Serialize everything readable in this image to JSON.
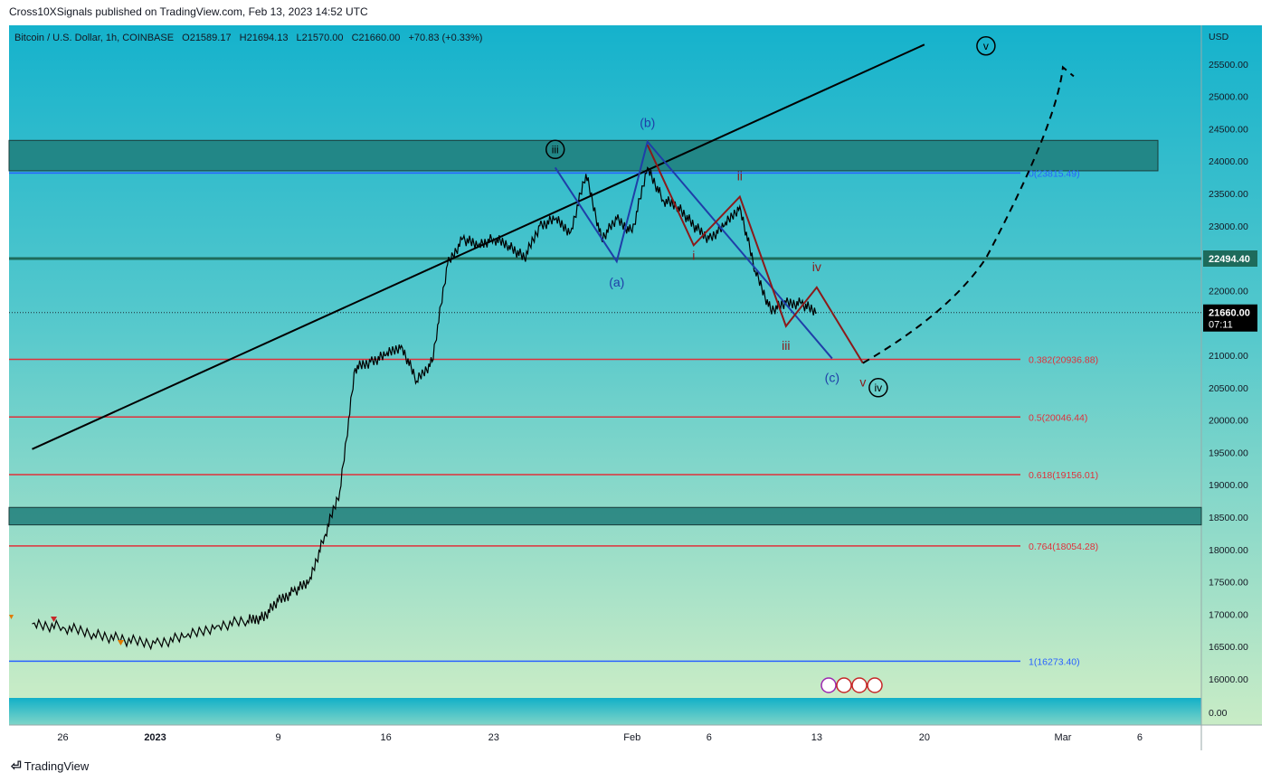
{
  "header": {
    "published": "Cross10XSignals published on TradingView.com, Feb 13, 2023 14:52 UTC"
  },
  "symbol_line": {
    "name": "Bitcoin / U.S. Dollar, 1h, COINBASE",
    "open": "O21589.17",
    "high": "H21694.13",
    "low": "L21570.00",
    "close": "C21660.00",
    "change": "+70.83 (+0.33%)"
  },
  "footer": {
    "brand": "TradingView"
  },
  "colors": {
    "bg_top": "#1ab6cf",
    "bg_bottom": "#c5e9c6",
    "zone": "#207e7a",
    "green_line": "#1e6b5b",
    "fib_red": "#e0303a",
    "fib_blue": "#2962ff",
    "wave_blue": "#1f3ea8",
    "wave_red": "#8b1a1a",
    "price": "#000000"
  },
  "chart_data": {
    "type": "line",
    "title": "Bitcoin / U.S. Dollar, 1h, COINBASE",
    "currency": "USD",
    "y_ticks": [
      16000,
      16500,
      17000,
      17500,
      18000,
      18500,
      19000,
      19500,
      20000,
      20500,
      21000,
      21500,
      22000,
      22500,
      23000,
      23500,
      24000,
      24500,
      25000,
      25500
    ],
    "y_tick_labels": [
      "16000.00",
      "16500.00",
      "17000.00",
      "17500.00",
      "18000.00",
      "18500.00",
      "19000.00",
      "19500.00",
      "20000.00",
      "20500.00",
      "21000.00",
      "21500.00",
      "22000.00",
      "22500.00",
      "23000.00",
      "23500.00",
      "24000.00",
      "24500.00",
      "25000.00",
      "25500.00"
    ],
    "volume_tick_label": "0.00",
    "x_ticks": [
      {
        "date": "2022-12-26",
        "label": "26"
      },
      {
        "date": "2023-01-01",
        "label": "2023"
      },
      {
        "date": "2023-01-09",
        "label": "9"
      },
      {
        "date": "2023-01-16",
        "label": "16"
      },
      {
        "date": "2023-01-23",
        "label": "23"
      },
      {
        "date": "2023-02-01",
        "label": "Feb"
      },
      {
        "date": "2023-02-06",
        "label": "6"
      },
      {
        "date": "2023-02-13",
        "label": "13"
      },
      {
        "date": "2023-02-20",
        "label": "20"
      },
      {
        "date": "2023-03-01",
        "label": "Mar"
      },
      {
        "date": "2023-03-06",
        "label": "6"
      }
    ],
    "series": [
      {
        "x": [
          "2022-12-24",
          "2022-12-26",
          "2022-12-28",
          "2022-12-30",
          "2023-01-01",
          "2023-01-03",
          "2023-01-05",
          "2023-01-07",
          "2023-01-08",
          "2023-01-09",
          "2023-01-10",
          "2023-01-11",
          "2023-01-12",
          "2023-01-13",
          "2023-01-14",
          "2023-01-15",
          "2023-01-16",
          "2023-01-17",
          "2023-01-18",
          "2023-01-19",
          "2023-01-20",
          "2023-01-21",
          "2023-01-22",
          "2023-01-23",
          "2023-01-24",
          "2023-01-25",
          "2023-01-26",
          "2023-01-27",
          "2023-01-28",
          "2023-01-29",
          "2023-01-30",
          "2023-01-31",
          "2023-02-01",
          "2023-02-02",
          "2023-02-03",
          "2023-02-04",
          "2023-02-05",
          "2023-02-06",
          "2023-02-07",
          "2023-02-08",
          "2023-02-09",
          "2023-02-10",
          "2023-02-11",
          "2023-02-12",
          "2023-02-13"
        ],
        "y": [
          16850,
          16800,
          16700,
          16600,
          16550,
          16650,
          16820,
          16900,
          16950,
          17200,
          17350,
          17500,
          18200,
          18900,
          20800,
          20900,
          21000,
          21150,
          20600,
          20900,
          22400,
          22800,
          22700,
          22800,
          22700,
          22500,
          23000,
          23100,
          22900,
          23800,
          22800,
          23100,
          22900,
          23900,
          23400,
          23300,
          23000,
          22800,
          23000,
          23300,
          22300,
          21700,
          21800,
          21800,
          21660
        ]
      }
    ],
    "current_price": "21660.00",
    "current_price_timer": "07:11",
    "level_label": "22494.40",
    "horizontal_levels": [
      22494.4
    ],
    "zones": [
      {
        "from": 23850,
        "to": 24320
      },
      {
        "from": 18380,
        "to": 18650
      }
    ],
    "fib_levels": [
      {
        "value": 23815.49,
        "label": "0(23815.49)",
        "color": "blue"
      },
      {
        "value": 20936.88,
        "label": "0.382(20936.88)",
        "color": "red"
      },
      {
        "value": 20046.44,
        "label": "0.5(20046.44)",
        "color": "red"
      },
      {
        "value": 19156.01,
        "label": "0.618(19156.01)",
        "color": "red"
      },
      {
        "value": 18054.28,
        "label": "0.764(18054.28)",
        "color": "red"
      },
      {
        "value": 16273.4,
        "label": "1(16273.40)",
        "color": "blue"
      }
    ],
    "trendline": {
      "x": [
        "2022-12-24",
        "2023-02-20"
      ],
      "y": [
        19550,
        25800
      ]
    },
    "wave_abc": {
      "x": [
        "2023-01-27",
        "2023-01-31",
        "2023-02-02",
        "2023-02-14"
      ],
      "y": [
        23900,
        22450,
        24300,
        20950
      ],
      "labels": [
        "(a)",
        "(b)",
        "(c)"
      ]
    },
    "wave_sub": {
      "x": [
        "2023-02-02",
        "2023-02-05",
        "2023-02-08",
        "2023-02-11",
        "2023-02-13",
        "2023-02-16"
      ],
      "y": [
        24250,
        22700,
        23450,
        21450,
        22050,
        20880
      ],
      "labels": [
        "i",
        "ii",
        "iii",
        "iv",
        "v"
      ]
    },
    "projection": {
      "x": [
        "2023-02-16",
        "2023-02-20",
        "2023-02-24",
        "2023-02-28",
        "2023-03-01"
      ],
      "y": [
        20880,
        21400,
        22500,
        24000,
        25450
      ]
    },
    "circle_labels": [
      {
        "text": "iii",
        "x": "2023-01-27",
        "y": 24180
      },
      {
        "text": "iv",
        "x": "2023-02-17",
        "y": 20500
      },
      {
        "text": "v",
        "x": "2023-02-24",
        "y": 25780
      }
    ]
  }
}
